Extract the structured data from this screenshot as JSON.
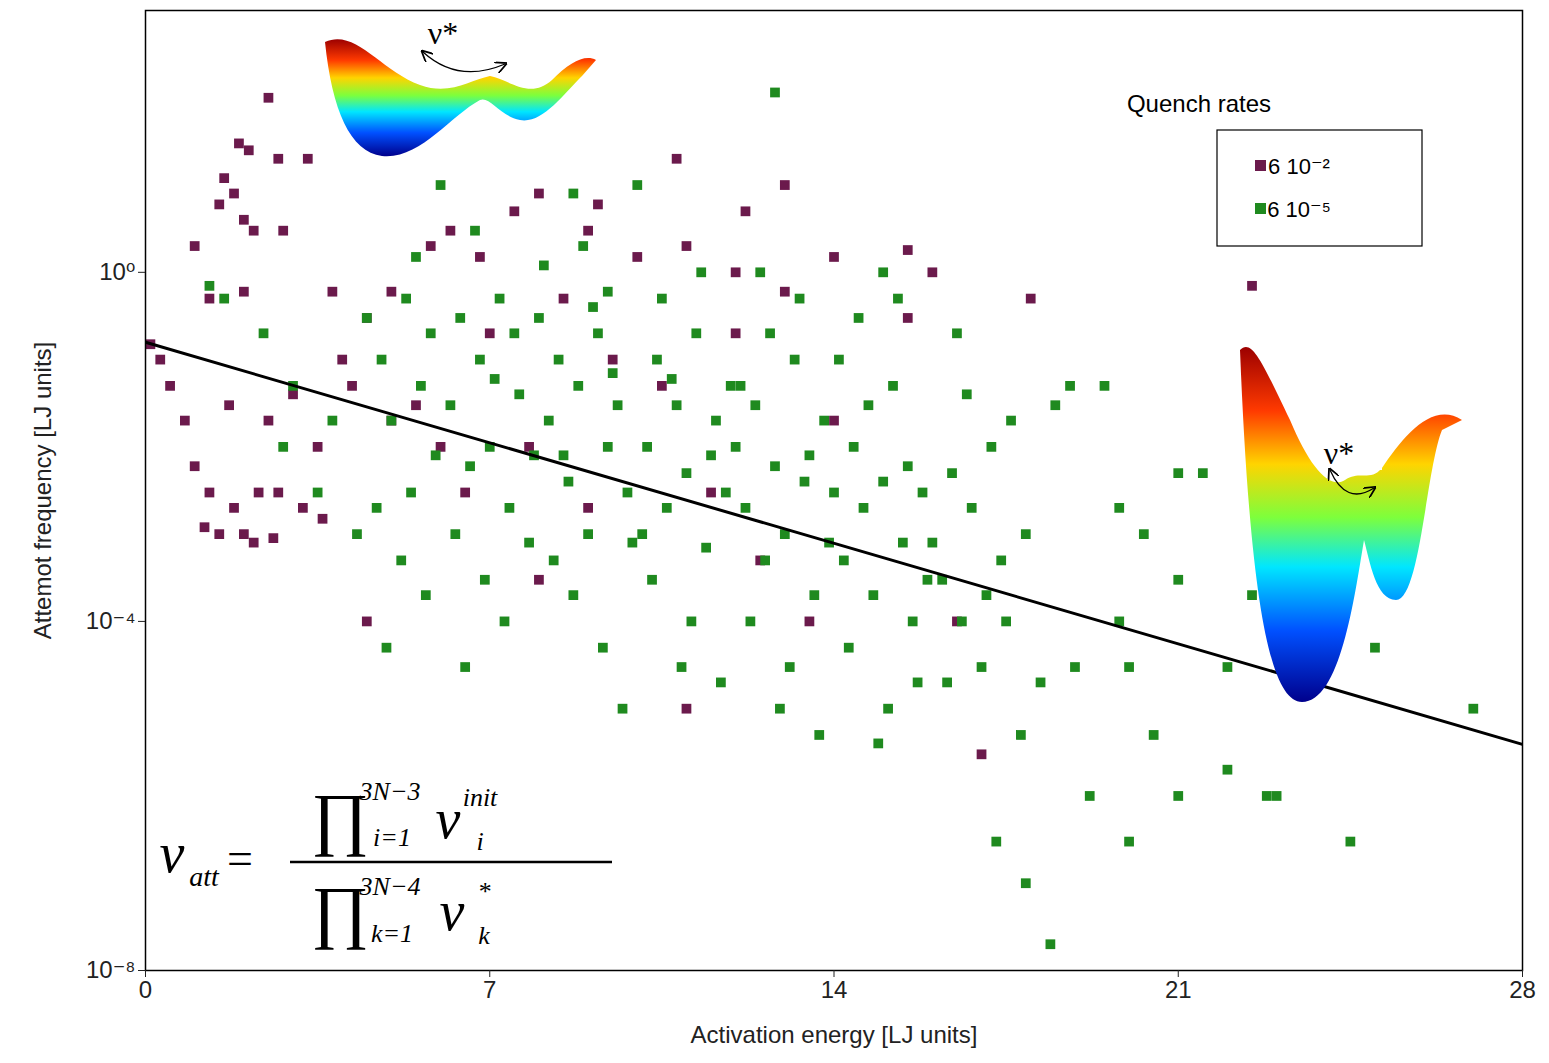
{
  "chart_data": {
    "type": "scatter",
    "x_label": "Activation energy [LJ units]",
    "y_label": "Attemot frequency [LJ units]",
    "xlim": [
      0,
      28
    ],
    "xticks": [
      0,
      7,
      14,
      21,
      28
    ],
    "ylim": [
      1e-08,
      1000
    ],
    "yticks": [
      {
        "value": 1e-08,
        "label": "10⁻⁸"
      },
      {
        "value": 0.0001,
        "label": "10⁻⁴"
      },
      {
        "value": 1,
        "label": "10⁰"
      }
    ],
    "log": "y",
    "grid": false,
    "legend": "top-right",
    "legend_title": "Quench rates",
    "annotations": [
      "ν*",
      "ν*"
    ],
    "formula": {
      "lhs": "ν",
      "lhs_sub": "att",
      "equals": "=",
      "product": "∏",
      "num_sup": "3N−3",
      "num_sub": "i=1",
      "num_var": "ν",
      "num_var_sup": "init",
      "num_var_sub": "i",
      "den_sup": "3N−4",
      "den_sub": "k=1",
      "den_var": "ν",
      "den_var_sup": "*",
      "den_var_sub": "k"
    },
    "series": [
      {
        "name": "6 10⁻²",
        "color": "#6b1a4c",
        "type": "scatter",
        "marker": "square",
        "x": [
          2.5,
          1.9,
          2.1,
          1.6,
          1.8,
          3.3,
          2.7,
          1.0,
          1.5,
          2.0,
          2.2,
          2.8,
          1.3,
          2.0,
          0.3,
          0.1,
          0.5,
          1.7,
          2.5,
          3.0,
          1.0,
          1.3,
          1.8,
          2.3,
          2.7,
          3.2,
          1.5,
          2.2,
          2.6,
          1.2,
          0.8,
          3.5,
          4.2,
          4.5,
          5.0,
          5.8,
          6.2,
          6.8,
          7.5,
          8.0,
          9.0,
          10.0,
          11.0,
          12.0,
          13.0,
          14.0,
          7.0,
          8.5,
          9.5,
          4.0,
          3.8,
          5.5,
          6.0,
          7.8,
          10.5,
          11.5,
          9.0,
          8.0,
          4.5,
          6.5,
          12.5,
          13.5,
          11.0,
          16.5,
          17.0,
          15.5,
          16.0,
          18.0,
          22.5,
          13.0,
          12.2,
          10.8,
          9.2,
          15.5,
          5.0,
          2.0,
          3.6,
          14.0,
          12.0
        ],
        "values": [
          100,
          30,
          25,
          12,
          8,
          20,
          20,
          2,
          6,
          4,
          3,
          3,
          0.5,
          0.6,
          0.1,
          0.15,
          0.05,
          0.03,
          0.02,
          0.04,
          0.006,
          0.003,
          0.002,
          0.003,
          0.003,
          0.002,
          0.001,
          0.0008,
          0.0009,
          0.0012,
          0.02,
          0.01,
          0.05,
          0.3,
          0.6,
          2,
          3,
          1.5,
          5,
          8,
          3,
          1.5,
          2,
          1,
          0.6,
          1.5,
          0.2,
          0.5,
          0.1,
          0.1,
          0.6,
          0.03,
          0.01,
          0.01,
          0.05,
          0.003,
          0.002,
          0.0003,
          0.0001,
          0.003,
          0.0005,
          0.0001,
          1e-05,
          0.0001,
          3e-06,
          0.3,
          1,
          0.5,
          0.7,
          10,
          5,
          20,
          6,
          1.8,
          0.02,
          0.001,
          0.0015,
          0.02,
          0.2
        ]
      },
      {
        "name": "6 10⁻⁵",
        "color": "#1f8a1f",
        "type": "scatter",
        "marker": "square",
        "x": [
          1.3,
          1.6,
          2.4,
          3.0,
          3.8,
          3.5,
          4.3,
          2.8,
          4.5,
          4.8,
          5.0,
          5.3,
          5.6,
          5.9,
          4.7,
          5.2,
          5.8,
          5.5,
          6.0,
          5.4,
          4.9,
          5.7,
          6.2,
          6.4,
          6.6,
          6.8,
          7.0,
          7.2,
          7.4,
          7.6,
          7.8,
          6.3,
          6.9,
          7.1,
          7.5,
          7.9,
          6.5,
          7.3,
          8.7,
          6.7,
          8.0,
          8.2,
          8.4,
          8.6,
          8.8,
          9.0,
          9.2,
          9.4,
          9.6,
          9.8,
          8.3,
          8.7,
          9.1,
          9.5,
          9.9,
          8.5,
          9.3,
          9.7,
          8.9,
          9.4,
          10.0,
          8.1,
          10.2,
          10.4,
          10.6,
          10.8,
          11.0,
          11.2,
          11.4,
          11.6,
          11.8,
          10.3,
          10.7,
          11.1,
          11.5,
          11.9,
          10.5,
          11.3,
          10.9,
          11.7,
          10.1,
          12.0,
          12.2,
          12.4,
          12.6,
          12.8,
          13.0,
          13.2,
          13.4,
          13.6,
          13.8,
          12.3,
          12.7,
          13.1,
          13.5,
          13.9,
          12.5,
          13.3,
          12.9,
          13.7,
          12.1,
          12.8,
          14.0,
          14.2,
          14.4,
          14.6,
          14.8,
          15.0,
          15.2,
          15.4,
          15.6,
          15.8,
          14.3,
          14.7,
          15.1,
          15.5,
          15.9,
          14.5,
          15.3,
          14.9,
          15.7,
          14.1,
          15.0,
          16.0,
          16.2,
          16.4,
          16.6,
          16.8,
          17.0,
          17.2,
          17.4,
          17.6,
          17.8,
          16.3,
          16.7,
          17.1,
          17.5,
          17.9,
          16.5,
          17.3,
          18.5,
          18.2,
          18.8,
          18.9,
          17.9,
          18.4,
          19.5,
          19.8,
          20.0,
          20.5,
          20.0,
          21.0,
          21.5,
          21.0,
          21.0,
          22.0,
          22.5,
          22.8,
          23.0,
          22.0,
          24.5,
          25.0,
          27.0,
          19.2,
          20.3,
          19.8
        ],
        "values": [
          0.7,
          0.5,
          0.2,
          0.05,
          0.02,
          0.003,
          0.001,
          0.01,
          0.3,
          0.1,
          0.02,
          0.5,
          0.05,
          0.008,
          0.002,
          0.0005,
          0.2,
          1.5,
          10,
          0.003,
          5e-05,
          0.0002,
          0.03,
          0.3,
          0.006,
          0.1,
          0.01,
          0.5,
          0.002,
          0.04,
          0.0008,
          0.001,
          0.0003,
          0.06,
          0.2,
          0.008,
          3e-05,
          0.0001,
          8,
          3,
          0.3,
          0.02,
          0.1,
          0.004,
          0.05,
          0.001,
          0.2,
          0.01,
          0.03,
          0.003,
          0.0005,
          0.0002,
          0.4,
          0.07,
          0.0008,
          0.008,
          5e-05,
          1e-05,
          2,
          0.6,
          10,
          1.2,
          0.01,
          0.1,
          0.002,
          0.03,
          0.005,
          0.2,
          0.0007,
          0.02,
          0.003,
          0.0003,
          0.06,
          0.0001,
          0.008,
          0.05,
          0.5,
          1,
          3e-05,
          2e-05,
          0.001,
          0.01,
          0.002,
          0.03,
          0.0005,
          0.006,
          0.001,
          0.1,
          0.004,
          0.0002,
          0.02,
          0.0001,
          0.2,
          3e-05,
          0.008,
          0.0008,
          1,
          0.5,
          1e-05,
          5e-06,
          0.05,
          115,
          0.003,
          0.0005,
          0.01,
          0.002,
          0.0002,
          0.004,
          0.05,
          0.0008,
          0.0001,
          0.003,
          5e-05,
          0.03,
          1e-05,
          0.006,
          0.0003,
          0.3,
          0.5,
          4e-06,
          2e-05,
          0.1,
          1,
          0.0008,
          0.0003,
          0.005,
          0.0001,
          0.002,
          3e-05,
          0.01,
          0.0005,
          0.02,
          5e-06,
          2e-05,
          0.04,
          0.0002,
          0.0001,
          0.001,
          0.2,
          3e-07,
          0.03,
          2e-05,
          0.05,
          3e-05,
          1e-07,
          2e-08,
          0.05,
          0.0001,
          3e-05,
          5e-06,
          3e-07,
          0.005,
          0.005,
          0.0003,
          1e-06,
          2e-06,
          0.0002,
          1e-06,
          1e-06,
          3e-05,
          3e-07,
          5e-05,
          1e-05,
          1e-06,
          0.001,
          0.002
        ]
      },
      {
        "color": "#000000",
        "type": "line",
        "x": [
          0,
          28
        ],
        "values": [
          0.158,
          3.9e-06
        ]
      }
    ]
  }
}
